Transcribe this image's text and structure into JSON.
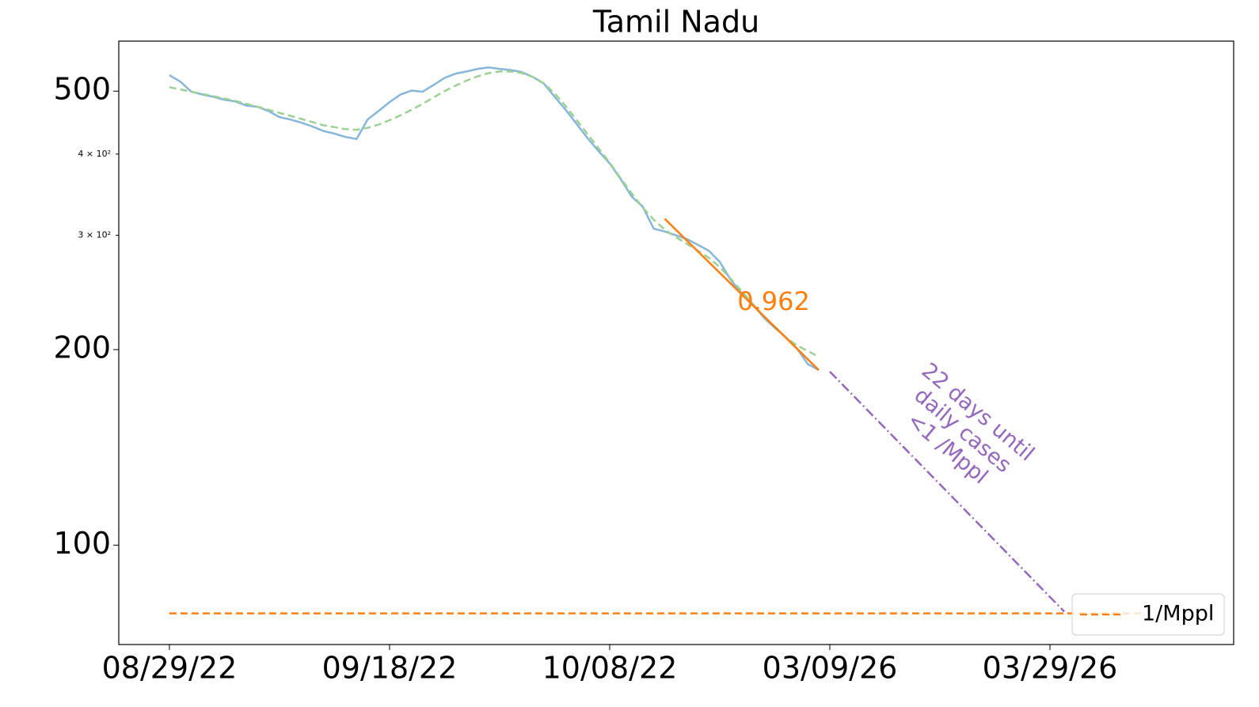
{
  "chart_data": {
    "type": "line",
    "title": "Tamil Nadu",
    "log_y": true,
    "xlim": [
      -4.6,
      96.69
    ],
    "ylim": [
      70.3,
      597
    ],
    "xticks": [
      {
        "value": 0,
        "label": "08/29/22"
      },
      {
        "value": 20,
        "label": "09/18/22"
      },
      {
        "value": 40,
        "label": "10/08/22"
      },
      {
        "value": 60,
        "label": "03/09/26"
      },
      {
        "value": 80,
        "label": "03/29/26"
      }
    ],
    "yticks": [
      100,
      200,
      {
        "value": 300,
        "label": "3 × 10²"
      },
      {
        "value": 400,
        "label": "4 × 10²"
      },
      500
    ],
    "major_yticks": [
      100,
      200,
      500
    ],
    "series": [
      {
        "color": "#86b6d9",
        "linestyle": "solid",
        "x": [
          0,
          1,
          2,
          3,
          4,
          5,
          6,
          7,
          8,
          9,
          10,
          11,
          12,
          13,
          14,
          15,
          16,
          17,
          18,
          19,
          20,
          21,
          22,
          23,
          24,
          25,
          26,
          27,
          28,
          29,
          30,
          31,
          32,
          33,
          34,
          35,
          36,
          37,
          38,
          39,
          40,
          41,
          42,
          43,
          44,
          45,
          46,
          47,
          48,
          49,
          50,
          51,
          52,
          53,
          54,
          55,
          56,
          57,
          58,
          59
        ],
        "values": [
          529,
          517,
          499,
          494,
          490,
          485,
          482,
          475,
          473,
          466,
          456,
          452,
          447,
          441,
          434,
          430,
          425,
          422,
          452,
          466,
          481,
          494,
          501,
          499,
          511,
          524,
          532,
          536,
          541,
          544,
          541,
          539,
          535,
          526,
          514,
          490,
          468,
          445,
          423,
          404,
          387,
          366,
          344,
          332,
          307,
          304,
          300,
          296,
          290,
          284,
          273,
          256,
          244,
          235,
          224,
          216,
          209,
          201,
          190,
          186
        ]
      },
      {
        "color": "#9dd193",
        "linestyle": "dashed",
        "x": [
          0,
          1,
          2,
          3,
          4,
          5,
          6,
          7,
          8,
          9,
          10,
          11,
          12,
          13,
          14,
          15,
          16,
          17,
          18,
          19,
          20,
          21,
          22,
          23,
          24,
          25,
          26,
          27,
          28,
          29,
          30,
          31,
          32,
          33,
          34,
          35,
          36,
          37,
          38,
          39,
          40,
          41,
          42,
          43,
          44,
          45,
          46,
          47,
          48,
          49,
          50,
          51,
          52,
          53,
          54,
          55,
          56,
          57,
          58,
          59
        ],
        "values": [
          507,
          503,
          499,
          495,
          491,
          487,
          483,
          478,
          473,
          468,
          463,
          458,
          453,
          448,
          443,
          440,
          437,
          436,
          439,
          444,
          451,
          459,
          468,
          478,
          489,
          500,
          510,
          519,
          527,
          533,
          536,
          536,
          533,
          526,
          514,
          496,
          474,
          451,
          429,
          408,
          388,
          367,
          348,
          331,
          317,
          306,
          298,
          291,
          284,
          277,
          268,
          257,
          246,
          235,
          225,
          217,
          209,
          203,
          199,
          195
        ]
      },
      {
        "color": "#ff7f0e",
        "linestyle": "solid",
        "x": [
          45,
          59
        ],
        "values": [
          318,
          186
        ]
      },
      {
        "color": "#9467bd",
        "linestyle": "dashdot",
        "x": [
          60,
          81.3
        ],
        "values": [
          185,
          79
        ]
      },
      {
        "name": "1/Mppl",
        "color": "#ff7f0e",
        "linestyle": "dashed",
        "x": [
          0,
          88.6
        ],
        "values": [
          78.5,
          78.5
        ]
      }
    ],
    "fit_label": "0.962",
    "projection_label": [
      "22 days until",
      "daily cases",
      "<1 /Mppl"
    ],
    "legend": "lower right"
  }
}
